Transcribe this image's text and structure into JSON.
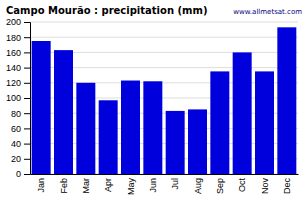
{
  "chart_data": {
    "type": "bar",
    "title": "Campo Mourão : precipitation (mm)",
    "categories": [
      "Jan",
      "Feb",
      "Mar",
      "Apr",
      "May",
      "Jun",
      "Jul",
      "Aug",
      "Sep",
      "Oct",
      "Nov",
      "Dec"
    ],
    "values": [
      175,
      163,
      120,
      97,
      123,
      122,
      83,
      85,
      135,
      160,
      135,
      193
    ],
    "color": "#0000dd",
    "ylim": [
      0,
      200
    ],
    "yticks": [
      0,
      20,
      40,
      60,
      80,
      100,
      120,
      140,
      160,
      180,
      200
    ],
    "grid": true,
    "annotations": [
      "www.allmetsat.com"
    ]
  }
}
